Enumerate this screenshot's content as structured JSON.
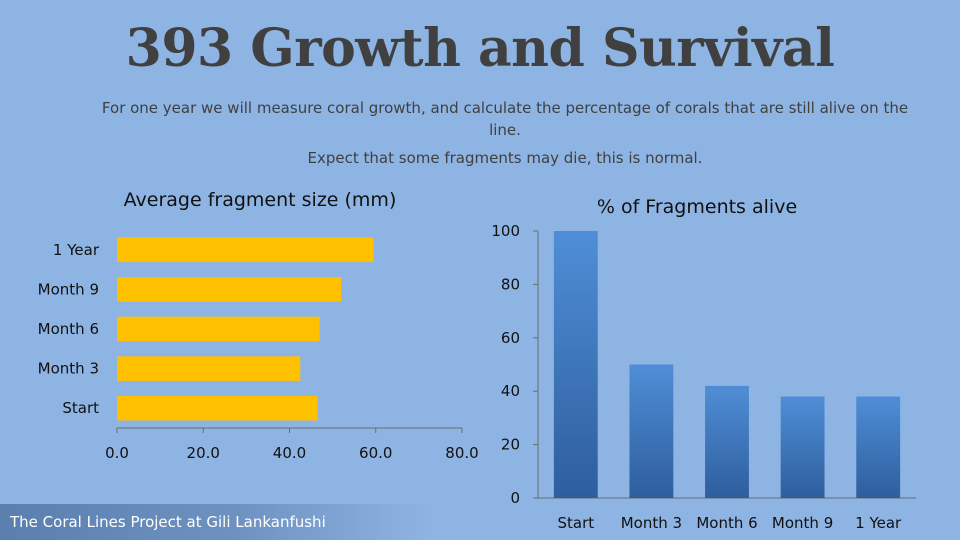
{
  "header": {
    "title": "393 Growth and Survival",
    "subtitle_line1": "For one year we will measure coral growth, and calculate the percentage of corals that are still alive on the line.",
    "subtitle_line2": "Expect that some fragments may die, this is normal."
  },
  "footer": {
    "text": "The Coral Lines Project at Gili Lankanfushi"
  },
  "colors": {
    "background": "#8EB4E3",
    "bar_gold": "#FFC000",
    "bar_blue_top": "#4F8ED6",
    "bar_blue_bottom": "#2E5E9E"
  },
  "chart_data": [
    {
      "type": "bar",
      "orientation": "horizontal",
      "title": "Average fragment size (mm)",
      "categories": [
        "Start",
        "Month 3",
        "Month 6",
        "Month 9",
        "1 Year"
      ],
      "values": [
        46.5,
        42.5,
        47.0,
        52.0,
        59.5
      ],
      "xlim": [
        0,
        80
      ],
      "xticks": [
        "0.0",
        "20.0",
        "40.0",
        "60.0",
        "80.0"
      ],
      "grid": false,
      "legend": "none"
    },
    {
      "type": "bar",
      "orientation": "vertical",
      "title": "% of Fragments alive",
      "categories": [
        "Start",
        "Month 3",
        "Month 6",
        "Month 9",
        "1 Year"
      ],
      "values": [
        100,
        50,
        42,
        38,
        38
      ],
      "ylim": [
        0,
        100
      ],
      "yticks": [
        "0",
        "20",
        "40",
        "60",
        "80",
        "100"
      ],
      "grid": false,
      "legend": "none"
    }
  ]
}
